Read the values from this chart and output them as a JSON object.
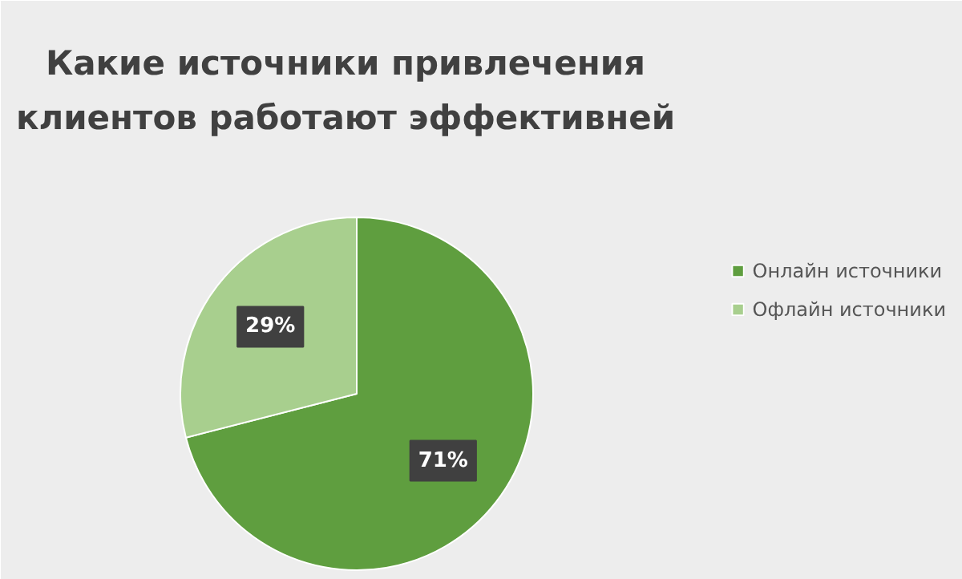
{
  "chart_data": {
    "type": "pie",
    "title": "Какие источники привлечения клиентов работают эффективней",
    "categories": [
      "Онлайн источники",
      "Офлайн источники"
    ],
    "values": [
      71,
      29
    ],
    "colors": [
      "#5f9e3f",
      "#a8cf8e"
    ],
    "value_labels": [
      "71%",
      "29%"
    ],
    "legend": "right"
  }
}
